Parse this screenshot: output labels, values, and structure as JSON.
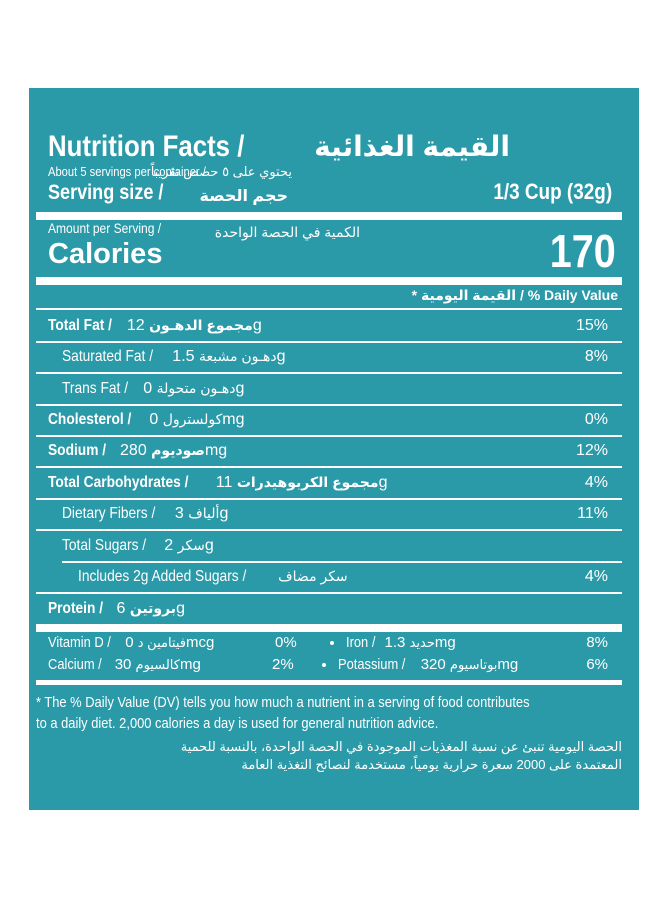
{
  "header": {
    "title_en": "Nutrition Facts /",
    "title_ar": "القيمة الغذائية",
    "servings_en": "About 5 servings per container /",
    "servings_ar": "يحتوي على ٥ حصص تقريباً",
    "serving_size_en": "Serving size /",
    "serving_size_ar": "حجم الحصة",
    "serving_size_value": "1/3 Cup (32g)"
  },
  "calories": {
    "amount_en": "Amount per Serving /",
    "amount_ar": "الكمية في الحصة الواحدة",
    "label": "Calories",
    "value": "170"
  },
  "daily_value_header": {
    "prefix": "*",
    "ar": "القيمة اليومية",
    "en": "/ % Daily Value"
  },
  "nutrients": [
    {
      "en": "Total Fat /",
      "ar": "مجموع الدهـون",
      "amount": "12g",
      "dv": "15%"
    },
    {
      "en": "Saturated Fat /",
      "ar": "دهـون مشبعة",
      "amount": "1.5g",
      "dv": "8%"
    },
    {
      "en": "Trans Fat /",
      "ar": "دهـون متحولة",
      "amount": "0g",
      "dv": ""
    },
    {
      "en": "Cholesterol /",
      "ar": "كولسترول",
      "amount": "0mg",
      "dv": "0%"
    },
    {
      "en": "Sodium /",
      "ar": "صوديوم",
      "amount": "280mg",
      "dv": "12%"
    },
    {
      "en": "Total Carbohydrates /",
      "ar": "مجموع الكربوهيدرات",
      "amount": "11g",
      "dv": "4%"
    },
    {
      "en": "Dietary Fibers /",
      "ar": "ألياف",
      "amount": "3g",
      "dv": "11%"
    },
    {
      "en": "Total Sugars /",
      "ar": "سكر",
      "amount": "2g",
      "dv": ""
    },
    {
      "en": "Includes 2g Added Sugars /",
      "ar": "سكر مضاف",
      "amount": "",
      "dv": "4%"
    },
    {
      "en": "Protein /",
      "ar": "بروتين",
      "amount": "6g",
      "dv": ""
    }
  ],
  "vitamins": {
    "vitamin_d": {
      "en": "Vitamin D /",
      "ar": "فيتامين د",
      "amount": "0mcg",
      "dv": "0%"
    },
    "calcium": {
      "en": "Calcium /",
      "ar": "كالسيوم",
      "amount": "30mg",
      "dv": "2%"
    },
    "iron": {
      "en": "Iron /",
      "ar": "حديد",
      "amount": "1.3mg",
      "dv": "8%"
    },
    "potassium": {
      "en": "Potassium /",
      "ar": "بوتاسيوم",
      "amount": "320mg",
      "dv": "6%"
    }
  },
  "footnote": {
    "en_line1": "* The % Daily Value (DV) tells you how much a nutrient in a serving of food contributes",
    "en_line2": "to a daily diet. 2,000 calories a day is used for general nutrition advice.",
    "ar_line1": "الحصة اليومية تنبئ عن نسبة المغذيات الموجودة في الحصة الواحدة، بالنسبة للحمية",
    "ar_line2": "المعتمدة على 2000 سعرة حرارية يومياً، مستخدمة لنصائح التغذية العامة"
  },
  "colors": {
    "panel": "#2b9aa8",
    "text": "#ffffff",
    "page": "#ffffff"
  }
}
